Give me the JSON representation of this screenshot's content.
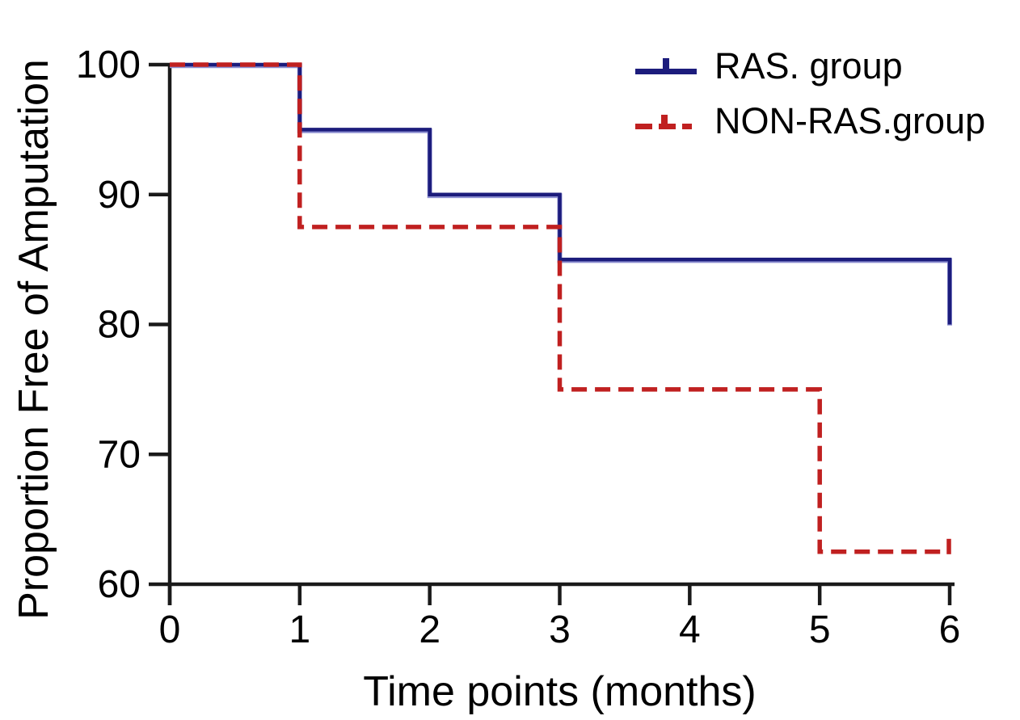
{
  "figure": {
    "background": "#ffffff"
  },
  "chart_data": {
    "type": "line",
    "subtype": "kaplan_meier_step",
    "title": "",
    "xlabel": "Time points (months)",
    "ylabel": "Proportion Free of Amputation",
    "xlim": [
      0,
      6
    ],
    "ylim": [
      60,
      100
    ],
    "x_ticks": [
      0,
      1,
      2,
      3,
      4,
      5,
      6
    ],
    "y_ticks": [
      100,
      90,
      80,
      70,
      60
    ],
    "grid": false,
    "legend_position": "top-right",
    "axis_color": "#1a1a1a",
    "text_color": "#000000",
    "series": [
      {
        "name": "RAS. group",
        "color": "#1c1c7c",
        "underlay_color": "#8d8fd1",
        "line_style": "solid",
        "points": [
          [
            0,
            100
          ],
          [
            1,
            100
          ],
          [
            1,
            95
          ],
          [
            2,
            95
          ],
          [
            2,
            90
          ],
          [
            3,
            90
          ],
          [
            3,
            85
          ],
          [
            6,
            85
          ],
          [
            6,
            80
          ]
        ],
        "censor_ticks": []
      },
      {
        "name": "NON-RAS.group",
        "color": "#c02020",
        "line_style": "dashed",
        "points": [
          [
            0,
            100
          ],
          [
            1,
            100
          ],
          [
            1,
            87.5
          ],
          [
            3,
            87.5
          ],
          [
            3,
            75
          ],
          [
            5,
            75
          ],
          [
            5,
            62.5
          ],
          [
            6,
            62.5
          ]
        ],
        "censor_ticks": [
          [
            6,
            62.5
          ]
        ]
      }
    ]
  }
}
